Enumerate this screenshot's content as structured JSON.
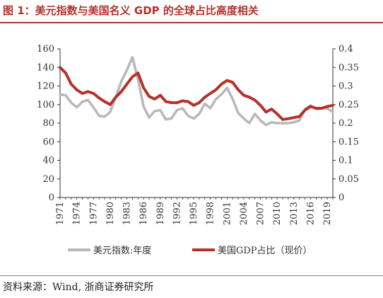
{
  "figure_title": "图 1：美元指数与美国名义 GDP 的全球占比高度相关",
  "source_note": "资料来源：Wind, 浙商证券研究所",
  "chart_data": {
    "type": "line",
    "ylim_left": [
      0,
      160
    ],
    "ylim_right": [
      0,
      0.4
    ],
    "yticks_left": [
      "0",
      "20",
      "40",
      "60",
      "80",
      "100",
      "120",
      "140",
      "160"
    ],
    "yticks_right": [
      "0",
      "0.05",
      "0.1",
      "0.15",
      "0.2",
      "0.25",
      "0.3",
      "0.35",
      "0.4"
    ],
    "x": [
      1971,
      1972,
      1973,
      1974,
      1975,
      1976,
      1977,
      1978,
      1979,
      1980,
      1981,
      1982,
      1983,
      1984,
      1985,
      1986,
      1987,
      1988,
      1989,
      1990,
      1991,
      1992,
      1993,
      1994,
      1995,
      1996,
      1997,
      1998,
      1999,
      2000,
      2001,
      2002,
      2003,
      2004,
      2005,
      2006,
      2007,
      2008,
      2009,
      2010,
      2011,
      2012,
      2013,
      2014,
      2015,
      2016,
      2017,
      2018,
      2019,
      2020
    ],
    "xticks": [
      "1971",
      "1974",
      "1977",
      "1980",
      "1983",
      "1986",
      "1989",
      "1992",
      "1995",
      "1998",
      "2001",
      "2004",
      "2007",
      "2010",
      "2013",
      "2016",
      "2019"
    ],
    "series": [
      {
        "name": "美元指数:年度",
        "axis": "left",
        "color": "#b8b8b8",
        "values": [
          111,
          110,
          102,
          97,
          103,
          105,
          97,
          88,
          87,
          92,
          108,
          125,
          137,
          151,
          127,
          98,
          86,
          93,
          94,
          84,
          85,
          94,
          96,
          88,
          85,
          90,
          101,
          96,
          106,
          111,
          118,
          106,
          91,
          85,
          80,
          90,
          83,
          78,
          81,
          80,
          80,
          80,
          81,
          83,
          95,
          99,
          95,
          96,
          96,
          92
        ]
      },
      {
        "name": "美国GDP占比（现价）",
        "axis": "right",
        "color": "#b4322b",
        "values": [
          0.35,
          0.335,
          0.305,
          0.29,
          0.28,
          0.285,
          0.28,
          0.268,
          0.258,
          0.25,
          0.27,
          0.285,
          0.305,
          0.325,
          0.335,
          0.295,
          0.272,
          0.265,
          0.275,
          0.258,
          0.255,
          0.255,
          0.26,
          0.258,
          0.248,
          0.255,
          0.27,
          0.28,
          0.29,
          0.305,
          0.315,
          0.31,
          0.29,
          0.275,
          0.27,
          0.262,
          0.248,
          0.23,
          0.238,
          0.225,
          0.21,
          0.212,
          0.215,
          0.218,
          0.235,
          0.245,
          0.24,
          0.24,
          0.245,
          0.248
        ]
      }
    ]
  }
}
